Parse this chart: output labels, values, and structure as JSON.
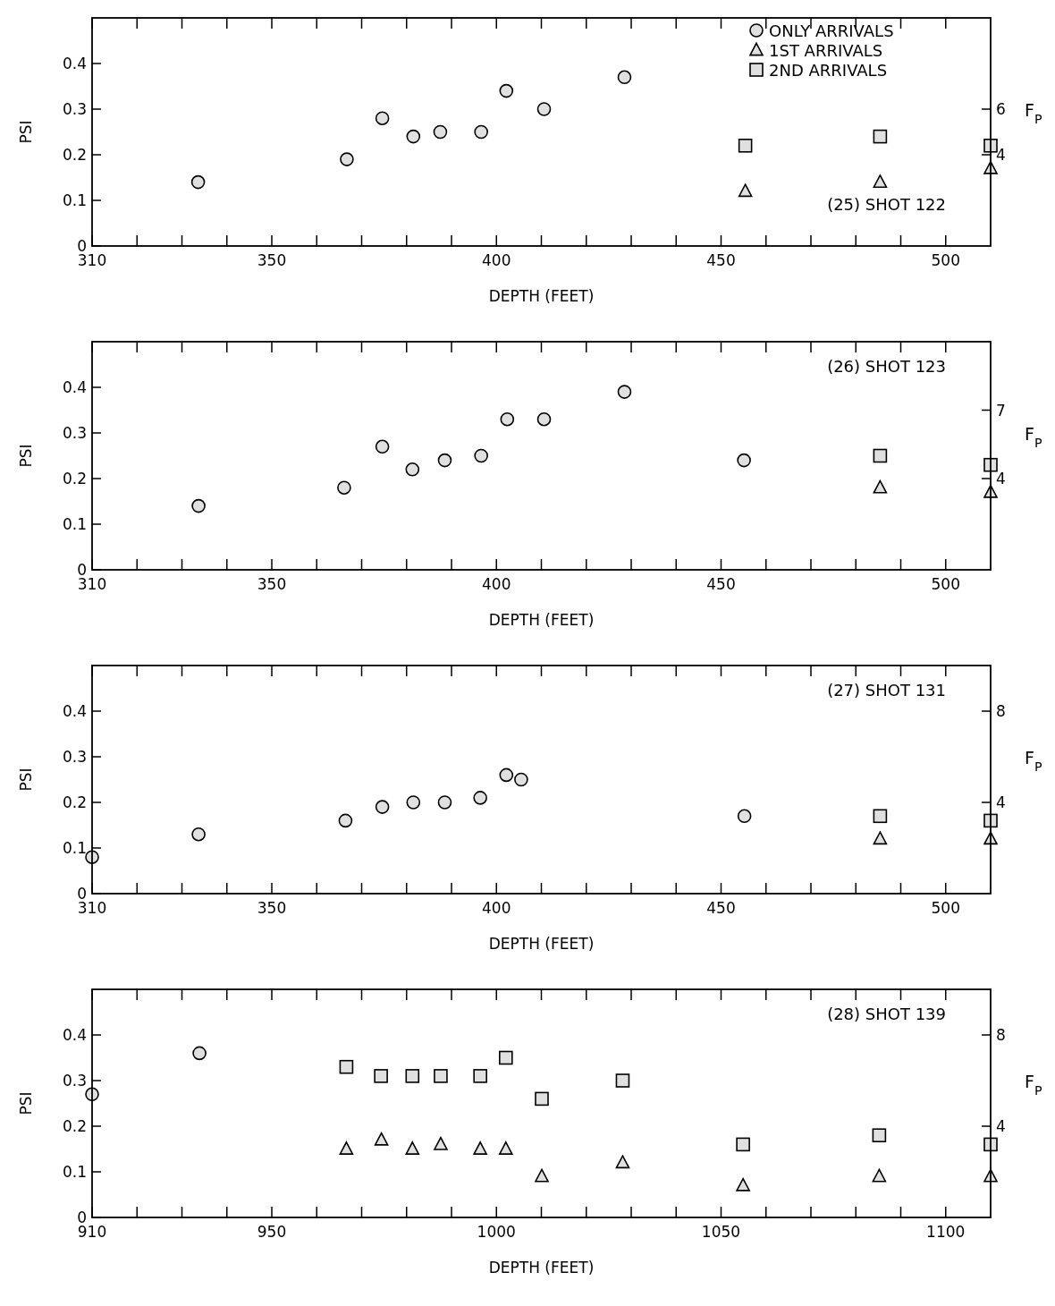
{
  "chart_data": [
    {
      "type": "scatter",
      "xlabel": "DEPTH (FEET)",
      "ylabel": "PSI",
      "y2label": "F$_{P}$",
      "annotations": [
        "(25) SHOT 122"
      ],
      "legend": "top right",
      "xlim": [
        310,
        510
      ],
      "xticks": [
        310,
        {
          "value": 320,
          "label": null
        },
        {
          "value": 330,
          "label": null
        },
        {
          "value": 340,
          "label": null
        },
        350,
        {
          "value": 360,
          "label": null
        },
        {
          "value": 370,
          "label": null
        },
        {
          "value": 380,
          "label": null
        },
        {
          "value": 390,
          "label": null
        },
        400,
        {
          "value": 410,
          "label": null
        },
        {
          "value": 420,
          "label": null
        },
        {
          "value": 430,
          "label": null
        },
        {
          "value": 440,
          "label": null
        },
        450,
        {
          "value": 460,
          "label": null
        },
        {
          "value": 470,
          "label": null
        },
        {
          "value": 480,
          "label": null
        },
        {
          "value": 490,
          "label": null
        },
        500
      ],
      "ylim": [
        0,
        0.5
      ],
      "yticks": [
        0,
        0.1,
        0.2,
        0.3,
        0.4
      ],
      "y2lim": [
        0,
        10
      ],
      "y2ticks": [
        4,
        6
      ],
      "series": [
        {
          "name": "ONLY ARRIVALS",
          "color": "#000000",
          "marker": "circle",
          "x": [
            333.6,
            366.7,
            374.6,
            381.5,
            387.5,
            396.6,
            402.2,
            410.6,
            428.5
          ],
          "values": [
            0.14,
            0.19,
            0.28,
            0.24,
            0.25,
            0.25,
            0.34,
            0.3,
            0.37
          ]
        },
        {
          "name": "1ST ARRIVALS",
          "color": "#000000",
          "marker": "triangle",
          "x": [
            455.4,
            485.4,
            510
          ],
          "values": [
            0.12,
            0.14,
            0.17
          ]
        },
        {
          "name": "2ND ARRIVALS",
          "color": "#000000",
          "marker": "square",
          "x": [
            455.4,
            485.4,
            510
          ],
          "values": [
            0.22,
            0.24,
            0.22
          ]
        }
      ]
    },
    {
      "type": "scatter",
      "xlabel": "DEPTH (FEET)",
      "ylabel": "PSI",
      "y2label": "F$_{P}$",
      "annotations": [
        "(26) SHOT 123"
      ],
      "xlim": [
        310,
        510
      ],
      "xticks": [
        310,
        {
          "value": 320,
          "label": null
        },
        {
          "value": 330,
          "label": null
        },
        {
          "value": 340,
          "label": null
        },
        350,
        {
          "value": 360,
          "label": null
        },
        {
          "value": 370,
          "label": null
        },
        {
          "value": 380,
          "label": null
        },
        {
          "value": 390,
          "label": null
        },
        400,
        {
          "value": 410,
          "label": null
        },
        {
          "value": 420,
          "label": null
        },
        {
          "value": 430,
          "label": null
        },
        {
          "value": 440,
          "label": null
        },
        450,
        {
          "value": 460,
          "label": null
        },
        {
          "value": 470,
          "label": null
        },
        {
          "value": 480,
          "label": null
        },
        {
          "value": 490,
          "label": null
        },
        500
      ],
      "ylim": [
        0,
        0.5
      ],
      "yticks": [
        0,
        0.1,
        0.2,
        0.3,
        0.4
      ],
      "y2lim": [
        0,
        10
      ],
      "y2ticks": [
        4,
        7
      ],
      "series": [
        {
          "color": "#000000",
          "marker": "circle",
          "x": [
            333.7,
            366.1,
            374.6,
            381.3,
            388.5,
            396.6,
            402.4,
            410.6,
            428.5,
            455.1
          ],
          "values": [
            0.14,
            0.18,
            0.27,
            0.22,
            0.24,
            0.25,
            0.33,
            0.33,
            0.39,
            0.24
          ]
        },
        {
          "color": "#000000",
          "marker": "triangle",
          "x": [
            485.4,
            510
          ],
          "values": [
            0.18,
            0.17
          ]
        },
        {
          "color": "#000000",
          "marker": "square",
          "x": [
            485.4,
            510
          ],
          "values": [
            0.25,
            0.23
          ]
        }
      ]
    },
    {
      "type": "scatter",
      "xlabel": "DEPTH (FEET)",
      "ylabel": "PSI",
      "y2label": "F$_{P}$",
      "annotations": [
        "(27) SHOT 131"
      ],
      "xlim": [
        310,
        510
      ],
      "xticks": [
        310,
        {
          "value": 320,
          "label": null
        },
        {
          "value": 330,
          "label": null
        },
        {
          "value": 340,
          "label": null
        },
        350,
        {
          "value": 360,
          "label": null
        },
        {
          "value": 370,
          "label": null
        },
        {
          "value": 380,
          "label": null
        },
        {
          "value": 390,
          "label": null
        },
        400,
        {
          "value": 410,
          "label": null
        },
        {
          "value": 420,
          "label": null
        },
        {
          "value": 430,
          "label": null
        },
        {
          "value": 440,
          "label": null
        },
        450,
        {
          "value": 460,
          "label": null
        },
        {
          "value": 470,
          "label": null
        },
        {
          "value": 480,
          "label": null
        },
        {
          "value": 490,
          "label": null
        },
        500
      ],
      "ylim": [
        0,
        0.5
      ],
      "yticks": [
        0,
        0.1,
        0.2,
        0.3,
        0.4
      ],
      "y2lim": [
        0,
        10
      ],
      "y2ticks": [
        4,
        8
      ],
      "series": [
        {
          "color": "#000000",
          "marker": "circle",
          "x": [
            310,
            333.7,
            366.4,
            374.6,
            381.5,
            388.5,
            396.4,
            402.2,
            405.5,
            455.2
          ],
          "values": [
            0.08,
            0.13,
            0.16,
            0.19,
            0.2,
            0.2,
            0.21,
            0.26,
            0.25,
            0.17
          ]
        },
        {
          "color": "#000000",
          "marker": "triangle",
          "x": [
            485.4,
            510
          ],
          "values": [
            0.12,
            0.12
          ]
        },
        {
          "color": "#000000",
          "marker": "square",
          "x": [
            485.4,
            510
          ],
          "values": [
            0.17,
            0.16
          ]
        }
      ]
    },
    {
      "type": "scatter",
      "xlabel": "DEPTH (FEET)",
      "ylabel": "PSI",
      "y2label": "F$_{P}$",
      "annotations": [
        "(28) SHOT 139"
      ],
      "xlim": [
        910,
        1110
      ],
      "xticks": [
        910,
        {
          "value": 920,
          "label": null
        },
        {
          "value": 930,
          "label": null
        },
        {
          "value": 940,
          "label": null
        },
        950,
        {
          "value": 960,
          "label": null
        },
        {
          "value": 970,
          "label": null
        },
        {
          "value": 980,
          "label": null
        },
        {
          "value": 990,
          "label": null
        },
        1000,
        {
          "value": 1010,
          "label": null
        },
        {
          "value": 1020,
          "label": null
        },
        {
          "value": 1030,
          "label": null
        },
        {
          "value": 1040,
          "label": null
        },
        1050,
        {
          "value": 1060,
          "label": null
        },
        {
          "value": 1070,
          "label": null
        },
        {
          "value": 1080,
          "label": null
        },
        {
          "value": 1090,
          "label": null
        },
        1100
      ],
      "ylim": [
        0,
        0.5
      ],
      "yticks": [
        0,
        0.1,
        0.2,
        0.3,
        0.4
      ],
      "y2lim": [
        0,
        10
      ],
      "y2ticks": [
        4,
        8
      ],
      "series": [
        {
          "color": "#000000",
          "marker": "circle",
          "x": [
            910,
            933.9
          ],
          "values": [
            0.27,
            0.36
          ]
        },
        {
          "color": "#000000",
          "marker": "triangle",
          "x": [
            966.6,
            974.4,
            981.3,
            987.6,
            996.4,
            1002.1,
            1010.1,
            1028.1,
            1054.9,
            1085.2,
            1110
          ],
          "values": [
            0.15,
            0.17,
            0.15,
            0.16,
            0.15,
            0.15,
            0.09,
            0.12,
            0.07,
            0.09,
            0.09
          ]
        },
        {
          "color": "#000000",
          "marker": "square",
          "x": [
            966.6,
            974.3,
            981.3,
            987.6,
            996.4,
            1002.1,
            1010.1,
            1028.1,
            1054.9,
            1085.2,
            1110
          ],
          "values": [
            0.33,
            0.31,
            0.31,
            0.31,
            0.31,
            0.35,
            0.26,
            0.3,
            0.16,
            0.18,
            0.16
          ]
        }
      ]
    }
  ]
}
